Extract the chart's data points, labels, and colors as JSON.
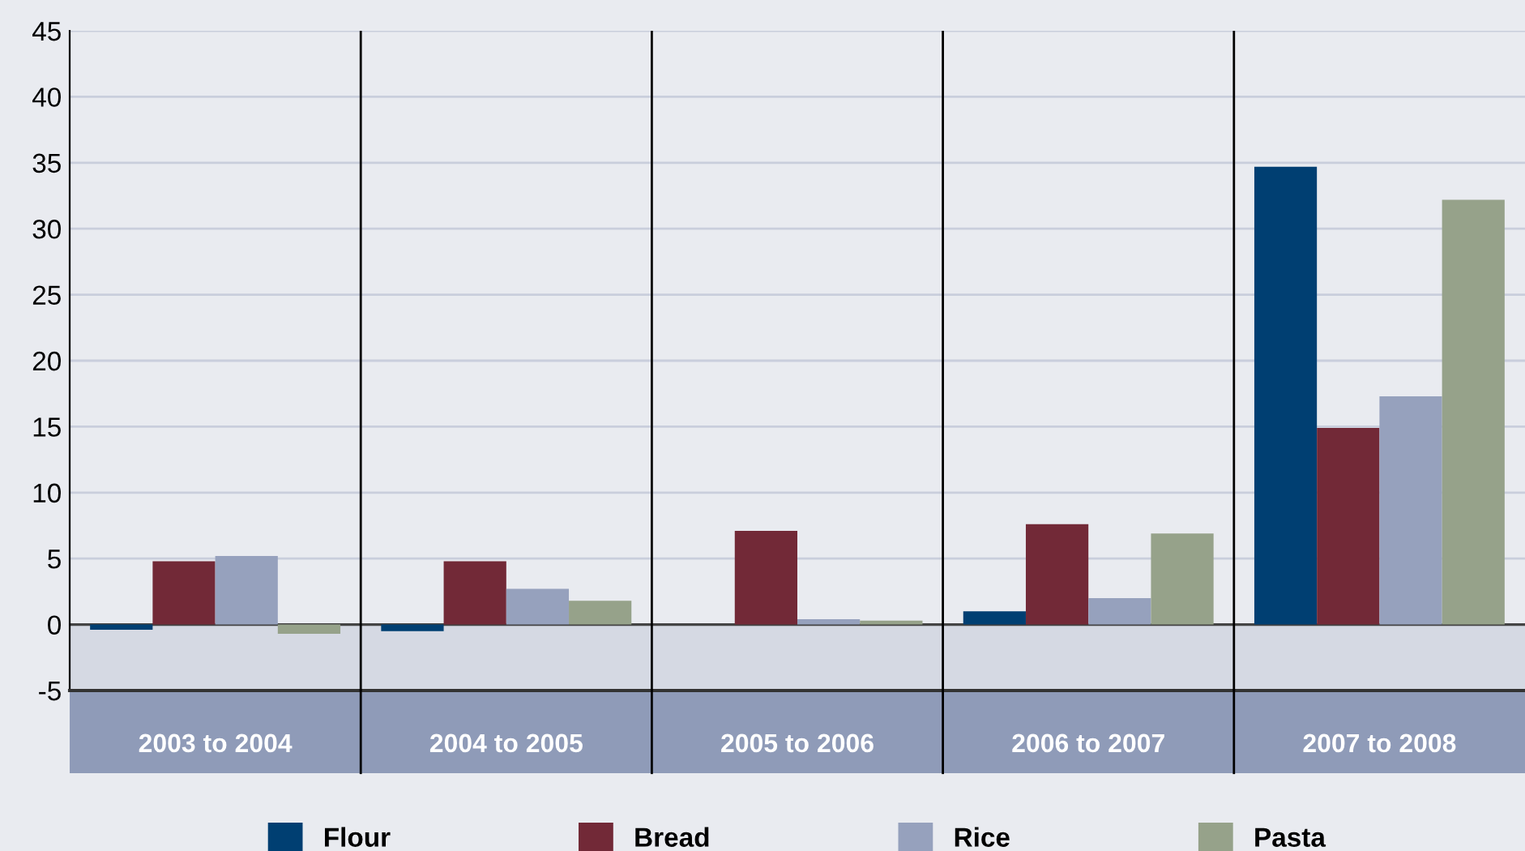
{
  "chart_data": {
    "type": "bar",
    "categories": [
      "2003 to 2004",
      "2004 to 2005",
      "2005 to 2006",
      "2006 to 2007",
      "2007 to 2008"
    ],
    "series": [
      {
        "name": "Flour",
        "color": "#003f72",
        "values": [
          -0.4,
          -0.5,
          0,
          1.0,
          34.7
        ]
      },
      {
        "name": "Bread",
        "color": "#722937",
        "values": [
          4.8,
          4.8,
          7.1,
          7.6,
          14.9
        ]
      },
      {
        "name": "Rice",
        "color": "#96a1bd",
        "values": [
          5.2,
          2.7,
          0.4,
          2.0,
          17.3
        ]
      },
      {
        "name": "Pasta",
        "color": "#96a28a",
        "values": [
          -0.7,
          1.8,
          0.3,
          6.9,
          32.2
        ]
      }
    ],
    "ylim": [
      -5,
      45
    ],
    "yticks": [
      -5,
      0,
      5,
      10,
      15,
      20,
      25,
      30,
      35,
      40,
      45
    ],
    "grid": "y",
    "legend": "bottom",
    "bands": [
      {
        "axis": "y",
        "from": -5,
        "to": 0,
        "color": "#d5d9e3"
      }
    ]
  }
}
